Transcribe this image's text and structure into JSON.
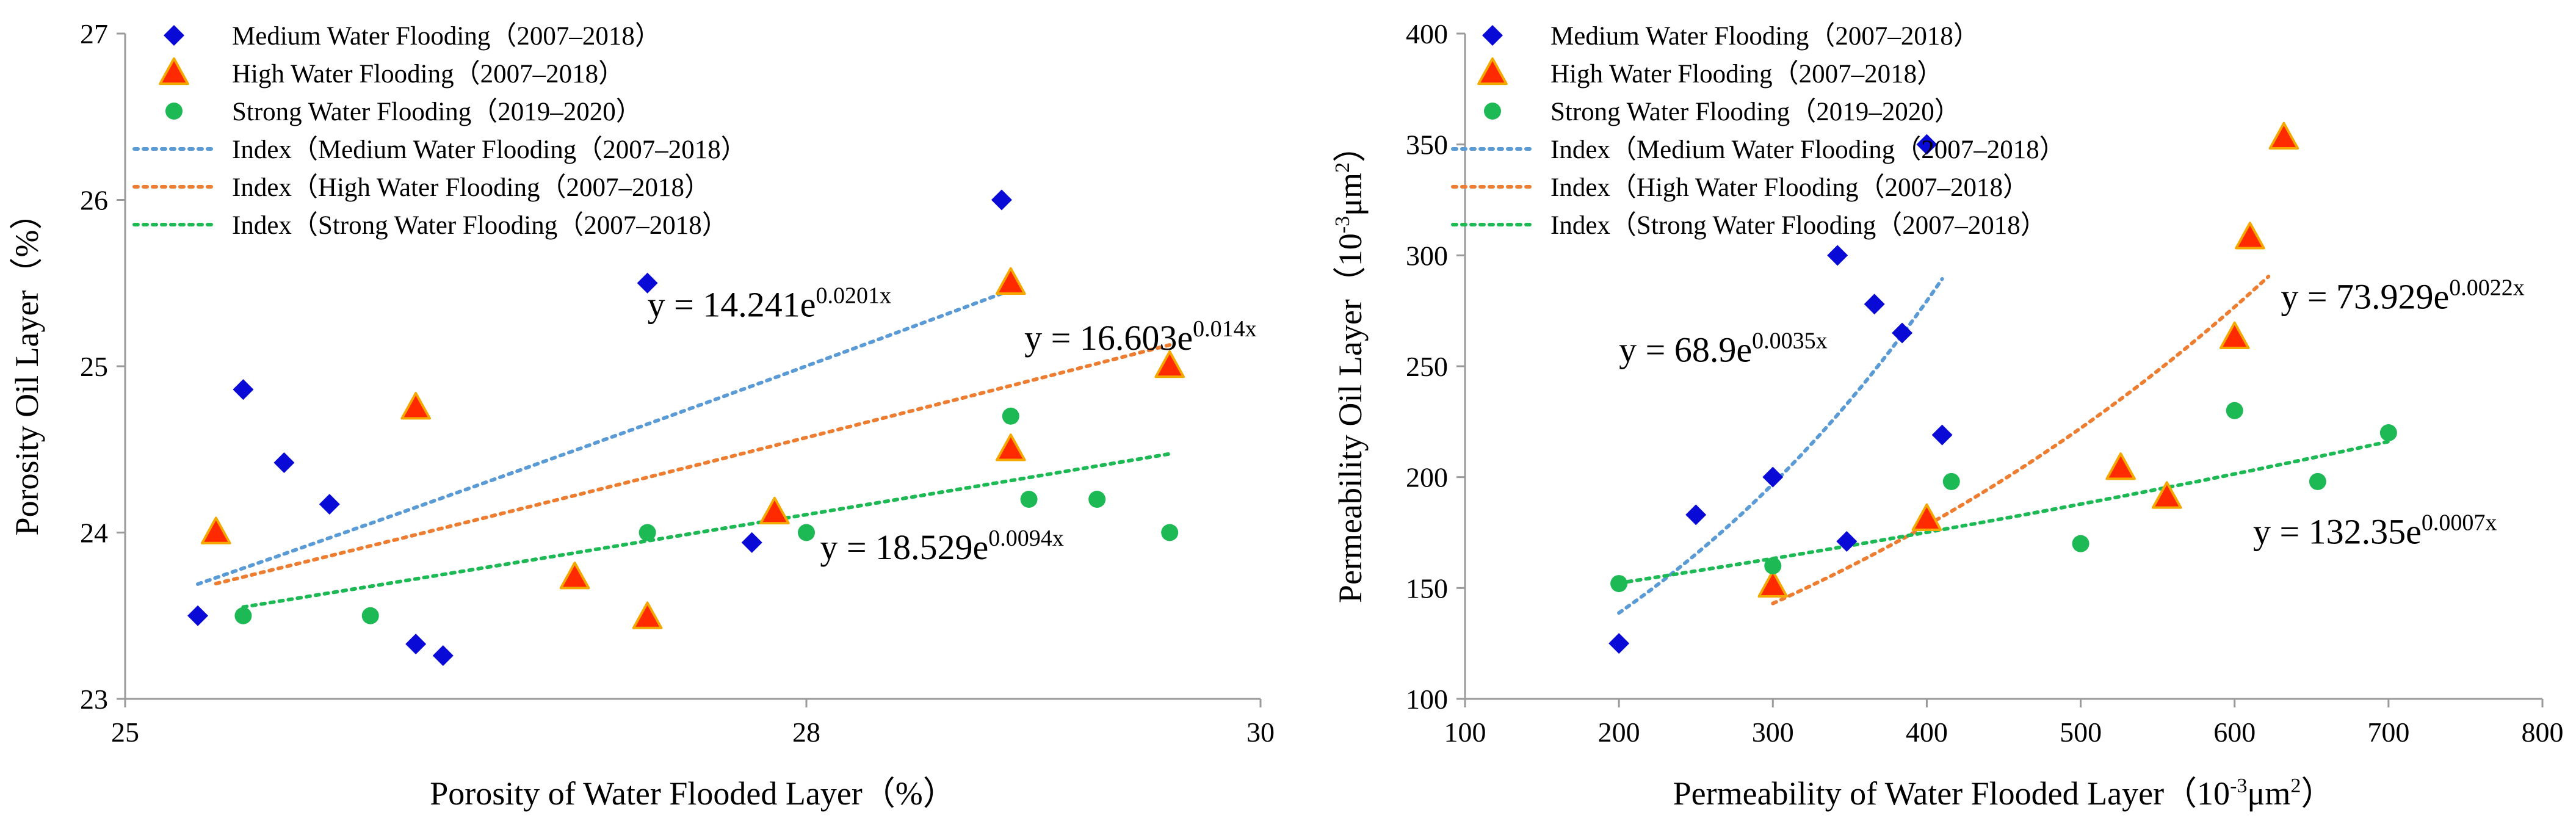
{
  "chart_data": [
    {
      "type": "scatter",
      "id": "porosity",
      "xlabel": "Porosity of  Water Flooded Layer（%）",
      "ylabel": "Porosity Oil Layer（%）",
      "xlim": [
        25,
        30
      ],
      "ylim": [
        23,
        27
      ],
      "xticks": [
        25,
        28,
        30
      ],
      "yticks": [
        23,
        24,
        25,
        26,
        27
      ],
      "legend": [
        {
          "label": "Medium Water Flooding（2007–2018）",
          "kind": "diamond",
          "color": "#0a0ad6"
        },
        {
          "label": "High Water Flooding（2007–2018）",
          "kind": "triangle",
          "color": "#ff2a00"
        },
        {
          "label": "Strong Water Flooding（2019–2020）",
          "kind": "circle",
          "color": "#1db954"
        },
        {
          "label": "Index（Medium Water Flooding（2007–2018）",
          "kind": "line",
          "color": "#5b9bd5"
        },
        {
          "label": "Index（High Water Flooding（2007–2018）",
          "kind": "line",
          "color": "#ed7d31"
        },
        {
          "label": "Index（Strong Water Flooding（2007–2018）",
          "kind": "line",
          "color": "#1db954"
        }
      ],
      "series": [
        {
          "name": "Medium Water Flooding (2007–2018)",
          "marker": "diamond",
          "color": "#0a0ad6",
          "points": [
            [
              25.32,
              23.5
            ],
            [
              25.52,
              24.86
            ],
            [
              25.7,
              24.42
            ],
            [
              25.9,
              24.17
            ],
            [
              26.28,
              23.33
            ],
            [
              26.4,
              23.26
            ],
            [
              27.3,
              25.5
            ],
            [
              27.76,
              23.94
            ],
            [
              28.86,
              26.0
            ]
          ]
        },
        {
          "name": "High Water Flooding (2007–2018)",
          "marker": "triangle",
          "color": "#ff2a00",
          "points": [
            [
              25.4,
              24.0
            ],
            [
              26.28,
              24.75
            ],
            [
              26.98,
              23.73
            ],
            [
              27.3,
              23.49
            ],
            [
              27.86,
              24.12
            ],
            [
              28.9,
              25.5
            ],
            [
              28.9,
              24.5
            ],
            [
              29.6,
              25.0
            ]
          ]
        },
        {
          "name": "Strong Water Flooding (2019–2020)",
          "marker": "circle",
          "color": "#1db954",
          "points": [
            [
              25.52,
              23.5
            ],
            [
              26.08,
              23.5
            ],
            [
              27.3,
              24.0
            ],
            [
              28.0,
              24.0
            ],
            [
              28.98,
              24.2
            ],
            [
              28.9,
              24.7
            ],
            [
              29.28,
              24.2
            ],
            [
              29.6,
              24.0
            ]
          ]
        }
      ],
      "fits": [
        {
          "name": "Index (Medium)",
          "a": 14.241,
          "b": 0.0201,
          "x_range": [
            25.32,
            28.86
          ],
          "color": "#5b9bd5",
          "eq_base": "y = 14.241e",
          "eq_exp": "0.0201x",
          "eq_anchor": [
            27.3,
            25.3
          ]
        },
        {
          "name": "Index (High)",
          "a": 16.603,
          "b": 0.014,
          "x_range": [
            25.4,
            29.6
          ],
          "color": "#ed7d31",
          "eq_base": "y = 16.603e",
          "eq_exp": "0.014x",
          "eq_anchor": [
            28.96,
            25.1
          ]
        },
        {
          "name": "Index (Strong)",
          "a": 18.529,
          "b": 0.0094,
          "x_range": [
            25.52,
            29.6
          ],
          "color": "#1db954",
          "eq_base": "y = 18.529e",
          "eq_exp": "0.0094x",
          "eq_anchor": [
            28.06,
            23.84
          ]
        }
      ]
    },
    {
      "type": "scatter",
      "id": "permeability",
      "xlabel": "Permeability of Water Flooded Layer（10",
      "xlabel_sup": "-3",
      "xlabel_tail": "μm",
      "xlabel_sup2": "2",
      "xlabel_end": "）",
      "ylabel": "Permeability Oil Layer（10",
      "ylabel_sup": "-3",
      "ylabel_tail": "μm",
      "ylabel_sup2": "2",
      "ylabel_end": "）",
      "xlim": [
        100,
        800
      ],
      "ylim": [
        100,
        400
      ],
      "xticks": [
        100,
        200,
        300,
        400,
        500,
        600,
        700,
        800
      ],
      "yticks": [
        100,
        150,
        200,
        250,
        300,
        350,
        400
      ],
      "legend": [
        {
          "label": "Medium Water Flooding（2007–2018）",
          "kind": "diamond",
          "color": "#0a0ad6"
        },
        {
          "label": "High Water Flooding（2007–2018）",
          "kind": "triangle",
          "color": "#ff2a00"
        },
        {
          "label": "Strong Water Flooding（2019–2020）",
          "kind": "circle",
          "color": "#1db954"
        },
        {
          "label": "Index（Medium Water Flooding（2007–2018）",
          "kind": "line",
          "color": "#5b9bd5"
        },
        {
          "label": "Index（High Water Flooding（2007–2018）",
          "kind": "line",
          "color": "#ed7d31"
        },
        {
          "label": "Index（Strong Water Flooding（2007–2018）",
          "kind": "line",
          "color": "#1db954"
        }
      ],
      "series": [
        {
          "name": "Medium Water Flooding (2007–2018)",
          "marker": "diamond",
          "color": "#0a0ad6",
          "points": [
            [
              200,
              125
            ],
            [
              250,
              183
            ],
            [
              300,
              200
            ],
            [
              342,
              300
            ],
            [
              348,
              171
            ],
            [
              366,
              278
            ],
            [
              384,
              265
            ],
            [
              400,
              350
            ],
            [
              410,
              219
            ]
          ]
        },
        {
          "name": "High Water Flooding (2007–2018)",
          "marker": "triangle",
          "color": "#ff2a00",
          "points": [
            [
              300,
              151
            ],
            [
              400,
              181
            ],
            [
              526,
              204
            ],
            [
              556,
              191
            ],
            [
              600,
              263
            ],
            [
              610,
              308
            ],
            [
              632,
              353
            ]
          ]
        },
        {
          "name": "Strong Water Flooding (2019–2020)",
          "marker": "circle",
          "color": "#1db954",
          "points": [
            [
              200,
              152
            ],
            [
              300,
              160
            ],
            [
              416,
              198
            ],
            [
              500,
              170
            ],
            [
              600,
              230
            ],
            [
              654,
              198
            ],
            [
              700,
              220
            ]
          ]
        }
      ],
      "fits": [
        {
          "name": "Index (Medium)",
          "a": 68.9,
          "b": 0.0035,
          "x_range": [
            200,
            410
          ],
          "color": "#5b9bd5",
          "eq_base": "y = 68.9e",
          "eq_exp": "0.0035x",
          "eq_anchor": [
            200,
            252
          ]
        },
        {
          "name": "Index (High)",
          "a": 73.929,
          "b": 0.0022,
          "x_range": [
            300,
            622
          ],
          "color": "#ed7d31",
          "eq_base": "y = 73.929e",
          "eq_exp": "0.0022x",
          "eq_anchor": [
            630,
            276
          ]
        },
        {
          "name": "Index (Strong)",
          "a": 132.35,
          "b": 0.0007,
          "x_range": [
            200,
            700
          ],
          "color": "#1db954",
          "eq_base": "y = 132.35e",
          "eq_exp": "0.0007x",
          "eq_anchor": [
            612,
            170
          ]
        }
      ]
    }
  ]
}
